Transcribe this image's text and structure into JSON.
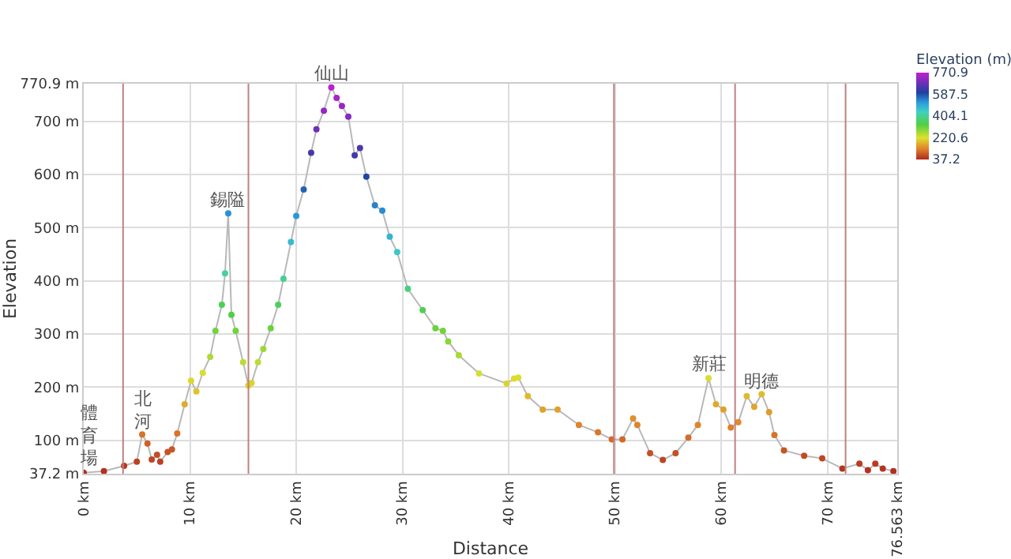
{
  "chart_data": {
    "type": "line",
    "xlabel": "Distance",
    "ylabel": "Elevation",
    "clabel": "Elevation (m)",
    "xlim": [
      0,
      76.563
    ],
    "ylim": [
      37.2,
      770.9
    ],
    "xticks": [
      {
        "value": 0,
        "label": "0 km"
      },
      {
        "value": 10,
        "label": "10 km"
      },
      {
        "value": 20,
        "label": "20 km"
      },
      {
        "value": 30,
        "label": "30 km"
      },
      {
        "value": 40,
        "label": "40 km"
      },
      {
        "value": 50,
        "label": "50 km"
      },
      {
        "value": 60,
        "label": "60 km"
      },
      {
        "value": 70,
        "label": "70 km"
      },
      {
        "value": 76.563,
        "label": "76.563 km"
      }
    ],
    "yticks": [
      {
        "value": 37.2,
        "label": "37.2 m"
      },
      {
        "value": 100,
        "label": "100 m"
      },
      {
        "value": 200,
        "label": "200 m"
      },
      {
        "value": 300,
        "label": "300 m"
      },
      {
        "value": 400,
        "label": "400 m"
      },
      {
        "value": 500,
        "label": "500 m"
      },
      {
        "value": 600,
        "label": "600 m"
      },
      {
        "value": 700,
        "label": "700 m"
      },
      {
        "value": 770.9,
        "label": "770.9 m"
      }
    ],
    "clim": [
      37.2,
      770.9
    ],
    "cticks": [
      770.9,
      587.5,
      404.1,
      220.6,
      37.2
    ],
    "grid": true,
    "marker": "circle",
    "x": [
      0,
      1.9,
      3.8,
      5.0,
      5.5,
      6.0,
      6.4,
      6.9,
      7.2,
      7.9,
      8.3,
      8.8,
      9.5,
      10.1,
      10.6,
      11.2,
      11.9,
      12.4,
      13.0,
      13.3,
      13.6,
      13.9,
      14.3,
      15.0,
      15.5,
      15.8,
      16.4,
      16.9,
      17.6,
      18.3,
      18.8,
      19.5,
      20.0,
      20.7,
      21.4,
      21.9,
      22.6,
      23.3,
      23.8,
      24.3,
      24.9,
      25.5,
      26.0,
      26.6,
      27.4,
      28.1,
      28.8,
      29.5,
      30.5,
      31.9,
      33.1,
      33.8,
      34.3,
      35.3,
      37.2,
      39.8,
      40.5,
      40.9,
      41.8,
      43.2,
      44.6,
      46.6,
      48.4,
      49.7,
      50.7,
      51.7,
      52.1,
      53.3,
      54.5,
      55.7,
      56.9,
      57.8,
      58.8,
      59.5,
      60.2,
      60.9,
      61.6,
      62.4,
      63.1,
      63.8,
      64.5,
      65.0,
      65.9,
      67.8,
      69.5,
      71.4,
      73.0,
      73.8,
      74.5,
      75.2,
      76.2
    ],
    "series": [
      {
        "values": [
          39,
          42,
          52,
          60,
          111,
          94,
          64,
          73,
          60,
          78,
          83,
          113,
          168,
          212,
          192,
          227,
          257,
          306,
          355,
          414,
          527,
          336,
          306,
          247,
          203,
          208,
          247,
          272,
          311,
          355,
          404,
          473,
          522,
          572,
          641,
          685,
          720,
          764,
          744,
          729,
          709,
          636,
          650,
          596,
          542,
          532,
          483,
          454,
          385,
          345,
          311,
          306,
          286,
          260,
          226,
          207,
          216,
          218,
          183,
          158,
          158,
          129,
          115,
          102,
          102,
          141,
          129,
          76,
          63,
          76,
          105,
          129,
          217,
          168,
          158,
          124,
          134,
          183,
          163,
          187,
          153,
          110,
          81,
          71,
          66,
          47,
          56,
          44,
          56,
          47,
          42
        ],
        "color": "#b8b8b8"
      }
    ],
    "ref_lines": [
      {
        "axis": "x",
        "value": 3.7,
        "color": "#c08080"
      },
      {
        "axis": "x",
        "value": 15.5,
        "color": "#c08080"
      },
      {
        "axis": "x",
        "value": 49.9,
        "color": "#c08080"
      },
      {
        "axis": "x",
        "value": 61.3,
        "color": "#c08080"
      },
      {
        "axis": "x",
        "value": 71.7,
        "color": "#c08080"
      }
    ],
    "annotations": [
      {
        "text": "體育場",
        "x": 0.5,
        "y": 39
      },
      {
        "text": "北河",
        "x": 5.5,
        "y": 111
      },
      {
        "text": "錫隘",
        "x": 13.6,
        "y": 527
      },
      {
        "text": "仙山",
        "x": 23.3,
        "y": 764
      },
      {
        "text": "新莊",
        "x": 58.8,
        "y": 217
      },
      {
        "text": "明德",
        "x": 63.8,
        "y": 187
      }
    ]
  }
}
